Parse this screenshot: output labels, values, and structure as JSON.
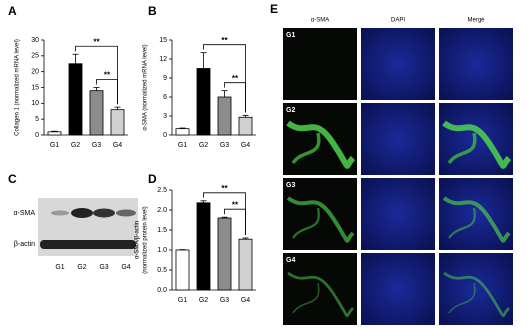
{
  "panel_labels": [
    "A",
    "B",
    "C",
    "D",
    "E"
  ],
  "chart_data": [
    {
      "type": "bar",
      "ylabel": "Collagen 1 (normalized mRNA level)",
      "categories": [
        "G1",
        "G2",
        "G3",
        "G4"
      ],
      "values": [
        1,
        22.5,
        14,
        8
      ],
      "errors": [
        0.2,
        3,
        1,
        0.8
      ],
      "colors": [
        "#ffffff",
        "#000000",
        "#8c8c8c",
        "#d0d0d0"
      ],
      "ylim": [
        0,
        30
      ],
      "yticks": [
        0,
        5,
        10,
        15,
        20,
        25,
        30
      ],
      "significance": [
        "**",
        "**"
      ]
    },
    {
      "type": "bar",
      "ylabel": "α-SMA (normalized mRNA level)",
      "categories": [
        "G1",
        "G2",
        "G3",
        "G4"
      ],
      "values": [
        1,
        10.5,
        6,
        2.8
      ],
      "errors": [
        0.1,
        2.5,
        1,
        0.3
      ],
      "colors": [
        "#ffffff",
        "#000000",
        "#8c8c8c",
        "#d0d0d0"
      ],
      "ylim": [
        0,
        15
      ],
      "yticks": [
        0,
        3,
        6,
        9,
        12,
        15
      ],
      "significance": [
        "**",
        "**"
      ]
    },
    {
      "type": "bar",
      "ylabel": [
        "α-SMA/β-actin",
        "(normalized protein level)"
      ],
      "categories": [
        "G1",
        "G2",
        "G3",
        "G4"
      ],
      "values": [
        1.0,
        2.18,
        1.8,
        1.27
      ],
      "errors": [
        0.01,
        0.05,
        0.02,
        0.03
      ],
      "colors": [
        "#ffffff",
        "#000000",
        "#8c8c8c",
        "#d0d0d0"
      ],
      "ylim": [
        0,
        2.5
      ],
      "yticks": [
        {
          "value": 0,
          "label": "0.0"
        },
        0.5,
        {
          "value": 1,
          "label": "1.0"
        },
        1.5,
        {
          "value": 2,
          "label": "2.0"
        },
        2.5
      ],
      "significance": [
        "**",
        "**"
      ]
    }
  ],
  "blot": {
    "rows": [
      "α-SMA",
      "β-actin"
    ],
    "lanes": [
      "G1",
      "G2",
      "G3",
      "G4"
    ]
  },
  "micrographs": {
    "columns": [
      "α-SMA",
      "DAPI",
      "Merge"
    ],
    "rows": [
      "G1",
      "G2",
      "G3",
      "G4"
    ]
  }
}
